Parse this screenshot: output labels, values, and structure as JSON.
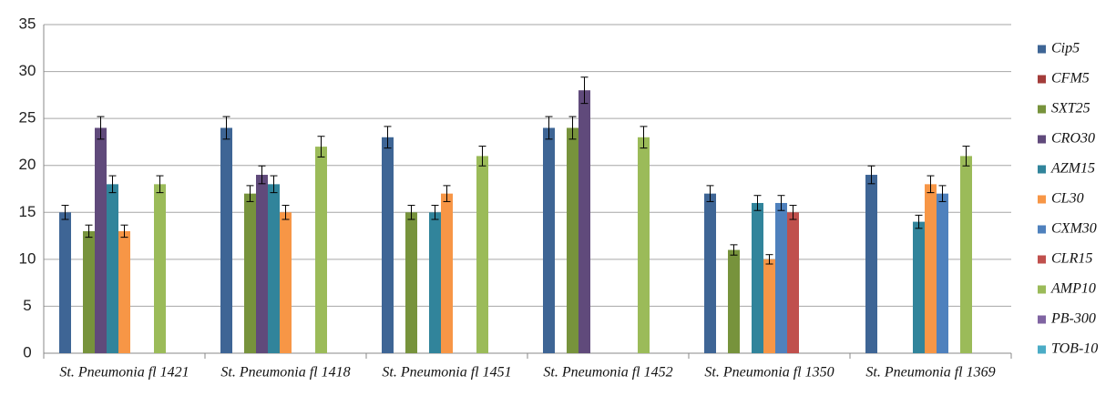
{
  "chart_data": {
    "type": "bar",
    "categories": [
      "St. Pneumonia fl 1421",
      "St. Pneumonia fl 1418",
      "St. Pneumonia fl 1451",
      "St. Pneumonia fl 1452",
      "St. Pneumonia fl 1350",
      "St. Pneumonia fl 1369"
    ],
    "series": [
      {
        "name": "Cip5",
        "color": "#3e6595",
        "values": [
          15,
          24,
          23,
          24,
          17,
          19
        ],
        "errors": [
          0.75,
          1.2,
          1.15,
          1.2,
          0.85,
          0.95
        ]
      },
      {
        "name": "CFM5",
        "color": "#a33c3a",
        "values": [
          null,
          null,
          null,
          null,
          null,
          null
        ],
        "errors": [
          null,
          null,
          null,
          null,
          null,
          null
        ]
      },
      {
        "name": "SXT25",
        "color": "#77933c",
        "values": [
          13,
          17,
          15,
          24,
          11,
          null
        ],
        "errors": [
          0.65,
          0.85,
          0.75,
          1.2,
          0.55,
          null
        ]
      },
      {
        "name": "CRO30",
        "color": "#604a7b",
        "values": [
          24,
          19,
          null,
          28,
          null,
          null
        ],
        "errors": [
          1.2,
          0.95,
          null,
          1.4,
          null,
          null
        ]
      },
      {
        "name": "AZM15",
        "color": "#31849b",
        "values": [
          18,
          18,
          15,
          null,
          16,
          14
        ],
        "errors": [
          0.9,
          0.9,
          0.75,
          null,
          0.8,
          0.7
        ]
      },
      {
        "name": "CL30",
        "color": "#f79646",
        "values": [
          13,
          15,
          17,
          null,
          10,
          18
        ],
        "errors": [
          0.65,
          0.75,
          0.85,
          null,
          0.5,
          0.9
        ]
      },
      {
        "name": "CXM30",
        "color": "#4f81bd",
        "values": [
          null,
          null,
          null,
          null,
          16,
          17
        ],
        "errors": [
          null,
          null,
          null,
          null,
          0.8,
          0.85
        ]
      },
      {
        "name": "CLR15",
        "color": "#c0504d",
        "values": [
          null,
          null,
          null,
          null,
          15,
          null
        ],
        "errors": [
          null,
          null,
          null,
          null,
          0.75,
          null
        ]
      },
      {
        "name": "AMP10",
        "color": "#9bbb59",
        "values": [
          18,
          22,
          21,
          23,
          null,
          21
        ],
        "errors": [
          0.9,
          1.1,
          1.05,
          1.15,
          null,
          1.05
        ]
      },
      {
        "name": "PB-300",
        "color": "#8064a2",
        "values": [
          null,
          null,
          null,
          null,
          null,
          null
        ],
        "errors": [
          null,
          null,
          null,
          null,
          null,
          null
        ]
      },
      {
        "name": "TOB-10",
        "color": "#4bacc6",
        "values": [
          null,
          null,
          null,
          null,
          null,
          null
        ],
        "errors": [
          null,
          null,
          null,
          null,
          null,
          null
        ]
      }
    ],
    "ylim": [
      0,
      35
    ],
    "yticks": [
      0,
      5,
      10,
      15,
      20,
      25,
      30,
      35
    ],
    "grid": true,
    "legend": "right"
  }
}
